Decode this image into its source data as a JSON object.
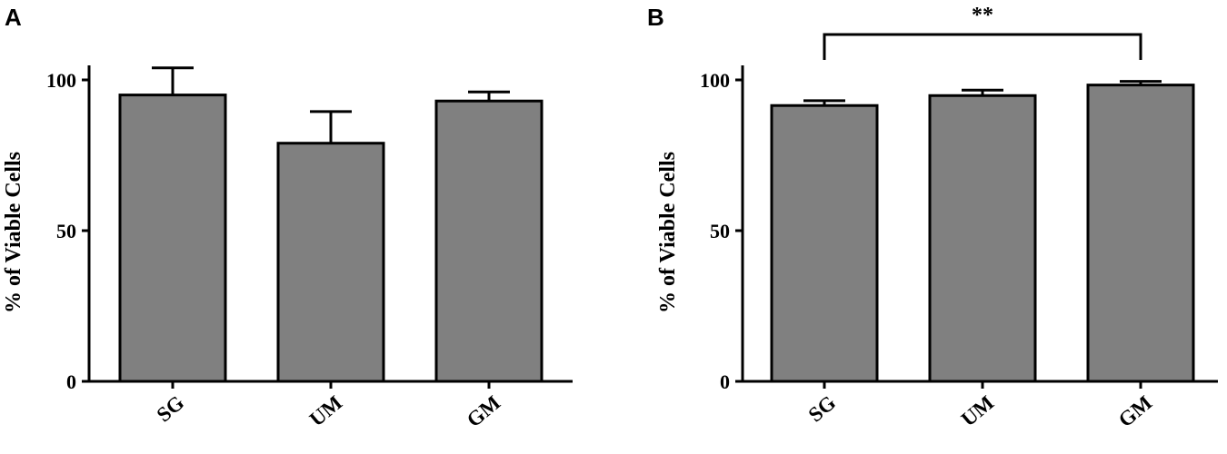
{
  "chart_data": [
    {
      "panel_label": "A",
      "type": "bar",
      "categories": [
        "SG",
        "UM",
        "GM"
      ],
      "values": [
        95,
        79,
        93
      ],
      "error": [
        9,
        10.5,
        3
      ],
      "ylabel": "% of Viable Cells",
      "ylim": [
        0,
        100
      ],
      "yticks": [
        0,
        50,
        100
      ],
      "bar_color": "#808080",
      "grid": false,
      "significance": null
    },
    {
      "panel_label": "B",
      "type": "bar",
      "categories": [
        "SG",
        "UM",
        "GM"
      ],
      "values": [
        91.5,
        94.8,
        98.3
      ],
      "error": [
        1.6,
        1.8,
        1.2
      ],
      "ylabel": "% of Viable Cells",
      "ylim": [
        0,
        100
      ],
      "yticks": [
        0,
        50,
        100
      ],
      "bar_color": "#808080",
      "grid": false,
      "significance": {
        "from": "SG",
        "to": "GM",
        "label": "**"
      }
    }
  ]
}
